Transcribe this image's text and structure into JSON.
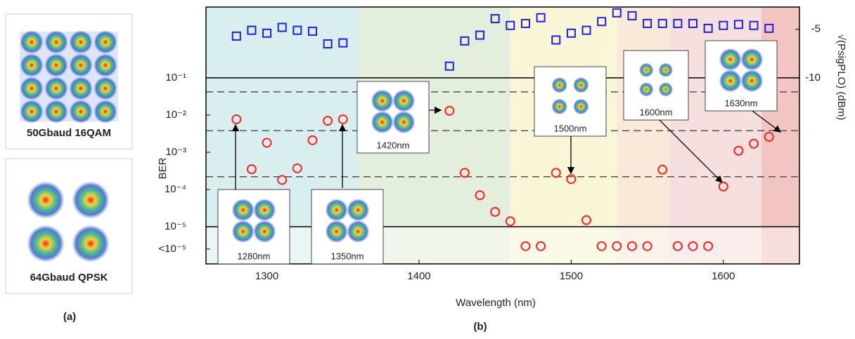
{
  "chart_data": {
    "type": "scatter",
    "x_label": "Wavelength (nm)",
    "y_label": "BER",
    "y2_label": "√(PsigPLO) (dBm)",
    "panel_label": "(b)",
    "x": [
      1280,
      1290,
      1300,
      1310,
      1320,
      1330,
      1340,
      1350,
      1420,
      1430,
      1440,
      1450,
      1460,
      1470,
      1480,
      1490,
      1500,
      1510,
      1520,
      1530,
      1540,
      1550,
      1560,
      1570,
      1580,
      1590,
      1600,
      1610,
      1620,
      1630
    ],
    "series": [
      {
        "color": "#ff2020",
        "marker": "circle",
        "axis": "y",
        "values": [
          0.0077,
          0.00035,
          0.0018,
          0.00018,
          0.00037,
          0.0021,
          0.007,
          0.0077,
          0.013,
          0.00028,
          7e-05,
          2.5e-05,
          1.4e-05,
          3e-06,
          3e-06,
          0.00028,
          0.00019,
          1.5e-05,
          3e-06,
          3e-06,
          3e-06,
          3e-06,
          0.00034,
          3e-06,
          3e-06,
          3e-06,
          0.00012,
          0.0011,
          0.0017,
          0.0026
        ]
      },
      {
        "color": "#2020e0",
        "marker": "square",
        "axis": "y2",
        "values": [
          -5.7,
          -5.1,
          -5.4,
          -4.8,
          -5.1,
          -5.2,
          -6.5,
          -6.4,
          -8.8,
          -6.2,
          -5.6,
          -3.9,
          -4.6,
          -4.4,
          -3.8,
          -6.1,
          -5.4,
          -5.1,
          -4.2,
          -3.3,
          -3.6,
          -4.4,
          -4.4,
          -4.4,
          -4.4,
          -4.9,
          -4.6,
          -4.5,
          -4.6,
          -4.9
        ]
      }
    ],
    "xlim": [
      1260,
      1650
    ],
    "xticks": [
      1300,
      1400,
      1500,
      1600
    ],
    "ylog": true,
    "ylim": [
      1e-06,
      8
    ],
    "yticks": [
      {
        "value": 0.1,
        "label": "10⁻¹"
      },
      {
        "value": 0.01,
        "label": "10⁻²"
      },
      {
        "value": 0.001,
        "label": "10⁻³"
      },
      {
        "value": 0.0001,
        "label": "10⁻⁴"
      },
      {
        "value": 1e-05,
        "label": "10⁻⁵"
      },
      {
        "value": 2.5e-06,
        "label": "<10⁻⁵"
      }
    ],
    "y2lim": [
      -29.2,
      -2.7
    ],
    "y2ticks": [
      -5,
      -10
    ],
    "reference_lines": [
      {
        "value": 0.1,
        "style": "solid"
      },
      {
        "value": 1e-05,
        "style": "solid"
      },
      {
        "value": 0.042,
        "style": "dashed"
      },
      {
        "value": 0.0038,
        "style": "dashed"
      },
      {
        "value": 0.00022,
        "style": "dashed"
      }
    ],
    "bands": [
      {
        "from": 1260,
        "to": 1360,
        "color": "#d9eeee"
      },
      {
        "from": 1360,
        "to": 1460,
        "color": "#e3efdc"
      },
      {
        "from": 1460,
        "to": 1530,
        "color": "#f8f6d6"
      },
      {
        "from": 1530,
        "to": 1565,
        "color": "#f8e9d8"
      },
      {
        "from": 1565,
        "to": 1625,
        "color": "#f6e0df"
      },
      {
        "from": 1625,
        "to": 1650,
        "color": "#f2c4c2"
      }
    ],
    "insets": [
      {
        "text": "1280nm"
      },
      {
        "text": "1350nm"
      },
      {
        "text": "1420nm"
      },
      {
        "text": "1500nm"
      },
      {
        "text": "1600nm"
      },
      {
        "text": "1630nm"
      }
    ]
  },
  "panel_a": {
    "label": "(a)",
    "images": [
      {
        "caption": "50Gbaud 16QAM"
      },
      {
        "caption": "64Gbaud QPSK"
      }
    ]
  }
}
